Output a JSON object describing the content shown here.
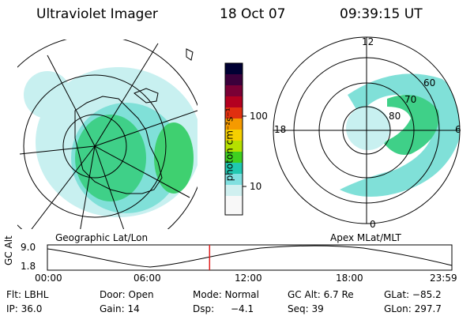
{
  "header": {
    "instrument": "Ultraviolet Imager",
    "date": "18 Oct 07",
    "time": "09:39:15 UT"
  },
  "left_panel": {
    "label": "Geographic Lat/Lon"
  },
  "right_panel": {
    "label": "Apex MLat/MLT",
    "mlt_labels": {
      "top": "12",
      "left": "18",
      "right": "6",
      "bottom": "0"
    },
    "lat_labels": [
      "60",
      "70",
      "80"
    ]
  },
  "colorbar": {
    "unit": "photon cm⁻²s⁻¹",
    "ticks": [
      "100",
      "10"
    ],
    "colors": [
      "#000033",
      "#3b003b",
      "#7a0035",
      "#b30020",
      "#e03010",
      "#f59a00",
      "#f5d000",
      "#b5e000",
      "#3fd020",
      "#20c8b0",
      "#80e0e0",
      "#d0f0f0",
      "#f8f8f8"
    ]
  },
  "timeline": {
    "ylabel": "GC Alt",
    "ymax_label": "9.0",
    "ymin_label": "1.8",
    "ticks": [
      "00:00",
      "06:00",
      "12:00",
      "18:00",
      "23:59"
    ],
    "current_time_fraction": 0.401
  },
  "info": {
    "flt": "Flt: LBHL",
    "door": "Door: Open",
    "mode": "Mode: Normal",
    "gc_alt": "GC Alt: 6.7 Re",
    "glat": "GLat: −85.2",
    "ip": "IP: 36.0",
    "gain": "Gain: 14",
    "dsp_label": "Dsp:",
    "dsp_value": "−4.1",
    "seq": "Seq: 39",
    "glon": "GLon: 297.7"
  }
}
